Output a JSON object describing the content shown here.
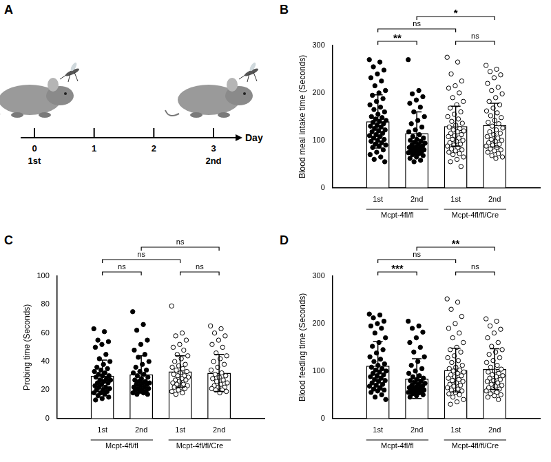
{
  "diagram": {
    "panel": "A",
    "axis_label": "Day",
    "days": [
      0,
      1,
      2,
      3
    ],
    "feedings": [
      {
        "day": 0,
        "label": "1st"
      },
      {
        "day": 3,
        "label": "2nd"
      }
    ]
  },
  "chart_data": [
    {
      "panel": "B",
      "type": "bar",
      "y_label": "Blood meal intake time (Seconds)",
      "categories": [
        "1st",
        "2nd",
        "1st",
        "2nd"
      ],
      "groups": [
        {
          "label": "Mcpt-4fl/fl",
          "from": 0,
          "to": 1
        },
        {
          "label": "Mcpt-4fl/fl/Cre",
          "from": 2,
          "to": 3
        }
      ],
      "values": [
        140,
        115,
        130,
        132
      ],
      "errors": [
        56,
        45,
        42,
        46
      ],
      "color": "#ffffff",
      "point_color": "#000000",
      "markers": [
        "filled",
        "filled",
        "open",
        "open"
      ],
      "points": [
        [
          270,
          265,
          255,
          248,
          240,
          232,
          225,
          215,
          205,
          200,
          195,
          188,
          182,
          175,
          170,
          165,
          160,
          155,
          150,
          148,
          145,
          142,
          140,
          138,
          135,
          132,
          130,
          128,
          125,
          122,
          120,
          118,
          115,
          112,
          110,
          108,
          105,
          102,
          100,
          98,
          95,
          92,
          90,
          88,
          85,
          80,
          75,
          70,
          65,
          60,
          55
        ],
        [
          270,
          205,
          198,
          192,
          185,
          178,
          170,
          160,
          150,
          142,
          135,
          128,
          122,
          118,
          112,
          108,
          105,
          102,
          100,
          98,
          96,
          94,
          92,
          90,
          88,
          86,
          85,
          84,
          82,
          80,
          80,
          78,
          76,
          75,
          74,
          72,
          70,
          68,
          65,
          62,
          58,
          55
        ],
        [
          275,
          265,
          240,
          225,
          215,
          210,
          200,
          190,
          182,
          175,
          168,
          160,
          155,
          150,
          145,
          140,
          136,
          132,
          128,
          125,
          122,
          120,
          118,
          115,
          112,
          110,
          108,
          105,
          102,
          100,
          98,
          95,
          92,
          90,
          88,
          85,
          82,
          80,
          78,
          75,
          72,
          70,
          65,
          60,
          55,
          45
        ],
        [
          258,
          250,
          245,
          238,
          232,
          220,
          212,
          205,
          198,
          190,
          182,
          175,
          168,
          162,
          158,
          152,
          148,
          142,
          138,
          135,
          130,
          126,
          122,
          118,
          115,
          112,
          108,
          105,
          102,
          100,
          98,
          95,
          92,
          90,
          88,
          85,
          82,
          80,
          78,
          75,
          72,
          68,
          65,
          62
        ]
      ],
      "comparisons": [
        {
          "from": 0,
          "to": 1,
          "label": "**"
        },
        {
          "from": 2,
          "to": 3,
          "label": "ns"
        },
        {
          "from": 0,
          "to": 2,
          "label": "ns"
        },
        {
          "from": 1,
          "to": 3,
          "label": "*"
        }
      ],
      "ylim": [
        0,
        300
      ],
      "yticks": [
        0,
        100,
        200,
        300
      ],
      "grid": false
    },
    {
      "panel": "C",
      "type": "bar",
      "y_label": "Probing time (Seconds)",
      "categories": [
        "1st",
        "2nd",
        "1st",
        "2nd"
      ],
      "groups": [
        {
          "label": "Mcpt-4fl/fl",
          "from": 0,
          "to": 1
        },
        {
          "label": "Mcpt-4fl/fl/Cre",
          "from": 2,
          "to": 3
        }
      ],
      "values": [
        30,
        31,
        33,
        32
      ],
      "errors": [
        11,
        13,
        11,
        13
      ],
      "color": "#ffffff",
      "point_color": "#000000",
      "markers": [
        "filled",
        "filled",
        "open",
        "open"
      ],
      "points": [
        [
          63,
          61,
          55,
          54,
          52,
          50,
          45,
          42,
          40,
          38,
          36,
          35,
          34,
          33,
          32,
          31,
          30,
          30,
          29,
          28,
          27,
          27,
          26,
          25,
          25,
          24,
          23,
          22,
          22,
          21,
          20,
          20,
          19,
          18,
          18,
          17,
          16,
          15,
          14,
          13
        ],
        [
          75,
          66,
          62,
          55,
          52,
          48,
          45,
          43,
          40,
          38,
          36,
          34,
          33,
          32,
          31,
          30,
          29,
          28,
          27,
          26,
          26,
          25,
          25,
          24,
          24,
          23,
          22,
          22,
          21,
          21,
          20,
          20,
          19,
          19,
          18,
          18,
          17,
          17
        ],
        [
          79,
          60,
          58,
          55,
          52,
          50,
          48,
          45,
          44,
          42,
          40,
          38,
          37,
          36,
          35,
          34,
          33,
          32,
          31,
          30,
          30,
          29,
          28,
          27,
          27,
          26,
          25,
          24,
          24,
          23,
          22,
          22,
          21,
          20,
          19,
          18,
          17
        ],
        [
          65,
          63,
          60,
          58,
          55,
          52,
          50,
          46,
          44,
          42,
          40,
          38,
          36,
          34,
          32,
          31,
          30,
          29,
          28,
          27,
          26,
          25,
          24,
          23,
          22,
          22,
          21,
          20,
          20,
          19,
          18
        ]
      ],
      "comparisons": [
        {
          "from": 0,
          "to": 1,
          "label": "ns"
        },
        {
          "from": 2,
          "to": 3,
          "label": "ns"
        },
        {
          "from": 0,
          "to": 2,
          "label": "ns"
        },
        {
          "from": 1,
          "to": 3,
          "label": "ns"
        }
      ],
      "ylim": [
        0,
        100
      ],
      "yticks": [
        0,
        20,
        40,
        60,
        80,
        100
      ],
      "grid": false
    },
    {
      "panel": "D",
      "type": "bar",
      "y_label": "Blood feeding time (Seconds)",
      "categories": [
        "1st",
        "2nd",
        "1st",
        "2nd"
      ],
      "groups": [
        {
          "label": "Mcpt-4fl/fl",
          "from": 0,
          "to": 1
        },
        {
          "label": "Mcpt-4fl/fl/Cre",
          "from": 2,
          "to": 3
        }
      ],
      "values": [
        111,
        84,
        102,
        104
      ],
      "errors": [
        51,
        42,
        46,
        43
      ],
      "color": "#ffffff",
      "point_color": "#000000",
      "markers": [
        "filled",
        "filled",
        "open",
        "open"
      ],
      "points": [
        [
          220,
          218,
          212,
          205,
          200,
          195,
          190,
          180,
          170,
          160,
          152,
          145,
          138,
          130,
          125,
          120,
          115,
          112,
          108,
          105,
          102,
          100,
          98,
          95,
          92,
          90,
          88,
          85,
          82,
          80,
          78,
          75,
          72,
          70,
          68,
          65,
          62,
          60,
          58,
          55,
          50,
          45,
          40
        ],
        [
          205,
          195,
          190,
          182,
          170,
          160,
          150,
          140,
          130,
          120,
          112,
          105,
          100,
          95,
          90,
          88,
          85,
          82,
          80,
          78,
          76,
          74,
          72,
          70,
          68,
          66,
          65,
          64,
          62,
          60,
          60,
          58,
          57,
          56,
          55,
          54,
          52,
          50,
          48,
          45
        ],
        [
          252,
          245,
          230,
          215,
          200,
          190,
          180,
          170,
          160,
          150,
          145,
          140,
          132,
          128,
          122,
          118,
          112,
          108,
          105,
          102,
          100,
          98,
          95,
          92,
          90,
          88,
          85,
          82,
          80,
          78,
          75,
          72,
          70,
          68,
          65,
          62,
          60,
          58,
          55,
          52,
          50,
          45,
          40,
          35,
          30
        ],
        [
          210,
          205,
          195,
          188,
          180,
          170,
          160,
          152,
          145,
          140,
          135,
          128,
          122,
          118,
          112,
          108,
          104,
          100,
          98,
          95,
          92,
          90,
          88,
          85,
          82,
          80,
          78,
          75,
          72,
          70,
          68,
          65,
          62,
          60,
          58,
          55,
          52,
          50,
          48,
          45,
          40
        ]
      ],
      "comparisons": [
        {
          "from": 0,
          "to": 1,
          "label": "***"
        },
        {
          "from": 2,
          "to": 3,
          "label": "ns"
        },
        {
          "from": 0,
          "to": 2,
          "label": "ns"
        },
        {
          "from": 1,
          "to": 3,
          "label": "**"
        }
      ],
      "ylim": [
        0,
        300
      ],
      "yticks": [
        0,
        100,
        200,
        300
      ],
      "grid": false
    }
  ]
}
